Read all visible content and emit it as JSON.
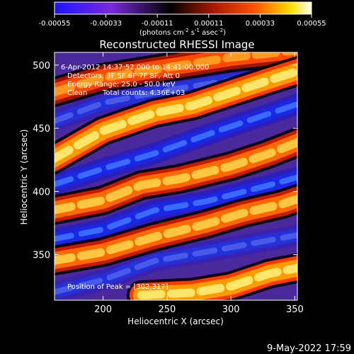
{
  "chart_data": {
    "type": "heatmap",
    "title": "Reconstructed RHESSI Image",
    "xlabel": "Heliocentric X (arcsec)",
    "ylabel": "Heliocentric Y (arcsec)",
    "xlim": [
      162,
      352
    ],
    "ylim": [
      314,
      510
    ],
    "x_ticks": [
      200,
      250,
      300,
      350
    ],
    "y_ticks": [
      350,
      400,
      450,
      500
    ],
    "colorbar": {
      "label": "(photons cm",
      "label_sup1": "-2",
      "label_mid": " s",
      "label_sup2": "-1",
      "label_mid2": " asec",
      "label_sup3": "-2",
      "label_end": ")",
      "range": [
        -0.00055,
        0.00055
      ],
      "ticks": [
        "-0.00055",
        "-0.00033",
        "-0.00011",
        "0.00011",
        "0.00033",
        "0.00055"
      ],
      "colors": [
        "#1c14ff",
        "#7a2ad8",
        "#000000",
        "#a81a00",
        "#ff5500",
        "#ffe000",
        "#ffffff"
      ]
    },
    "annotations": {
      "time_range": "6-Apr-2012 14:37:52.000 to 14:41:00.000",
      "detectors": "Detectors: 3F 5F 6F 7F 8F, Att 0",
      "energy_range": "Energy Range: 25.0 - 50.0 keV",
      "method": "Clean",
      "total_counts": "Total counts: 4.36E+03",
      "peak": "Position of Peak = [302,317]"
    },
    "bright_bands": [
      {
        "x": [
          160,
          200,
          250,
          300,
          355
        ],
        "y": [
          478,
          490,
          498,
          506,
          512
        ],
        "level": 0.6
      },
      {
        "x": [
          160,
          200,
          240,
          270,
          300,
          330,
          355
        ],
        "y": [
          425,
          448,
          462,
          468,
          478,
          488,
          496
        ],
        "level": 0.9
      },
      {
        "x": [
          160,
          200,
          230,
          260,
          300,
          330,
          355
        ],
        "y": [
          385,
          393,
          405,
          410,
          420,
          430,
          440
        ],
        "level": 0.75
      },
      {
        "x": [
          160,
          200,
          240,
          280,
          310,
          340,
          355
        ],
        "y": [
          345,
          352,
          364,
          374,
          383,
          390,
          395
        ],
        "level": 0.8
      },
      {
        "x": [
          230,
          270,
          300,
          330,
          355
        ],
        "y": [
          318,
          320,
          325,
          335,
          340
        ],
        "level": 0.95
      }
    ],
    "dark_bands": [
      {
        "x": [
          160,
          200,
          250,
          300,
          355
        ],
        "y": [
          455,
          470,
          480,
          488,
          494
        ],
        "level": -0.7
      },
      {
        "x": [
          160,
          200,
          240,
          290,
          355
        ],
        "y": [
          405,
          418,
          430,
          448,
          470
        ],
        "level": -0.85
      },
      {
        "x": [
          160,
          200,
          240,
          280,
          330,
          355
        ],
        "y": [
          362,
          370,
          385,
          392,
          405,
          412
        ],
        "level": -0.8
      },
      {
        "x": [
          160,
          200,
          240,
          280,
          355
        ],
        "y": [
          320,
          330,
          345,
          352,
          366
        ],
        "level": -0.6
      }
    ]
  },
  "footer": {
    "timestamp": "9-May-2022 17:59"
  }
}
